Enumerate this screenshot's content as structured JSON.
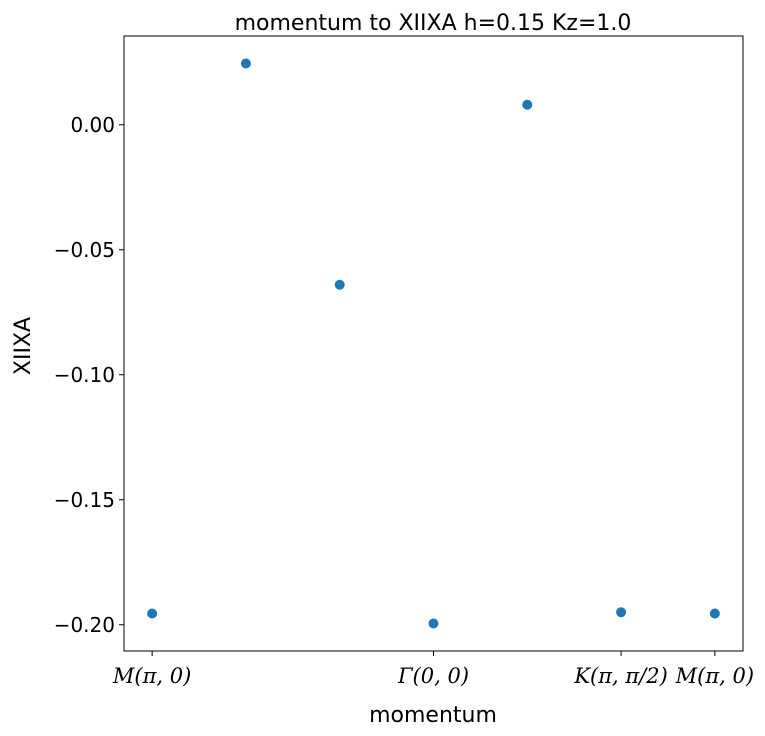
{
  "chart_data": {
    "type": "scatter",
    "title": "momentum to XIIXA h=0.15 Kz=1.0",
    "xlabel": "momentum",
    "ylabel": "XIIXA",
    "x": [
      0,
      1,
      2,
      3,
      4,
      5,
      6
    ],
    "y": [
      -0.1955,
      0.0245,
      -0.064,
      -0.1995,
      0.008,
      -0.195,
      -0.1955
    ],
    "xlim": [
      -0.3,
      6.3
    ],
    "ylim": [
      -0.2105,
      0.0355
    ],
    "xticks": [
      {
        "value": 0,
        "label": "M(π, 0)"
      },
      {
        "value": 3,
        "label": "Γ(0, 0)"
      },
      {
        "value": 5,
        "label": "K(π, π/2)"
      },
      {
        "value": 6,
        "label": "M(π, 0)"
      }
    ],
    "yticks": [
      {
        "value": 0.0,
        "label": "0.00"
      },
      {
        "value": -0.05,
        "label": "−0.05"
      },
      {
        "value": -0.1,
        "label": "−0.10"
      },
      {
        "value": -0.15,
        "label": "−0.15"
      },
      {
        "value": -0.2,
        "label": "−0.20"
      }
    ],
    "marker_color": "#1f77b4",
    "grid": false
  }
}
